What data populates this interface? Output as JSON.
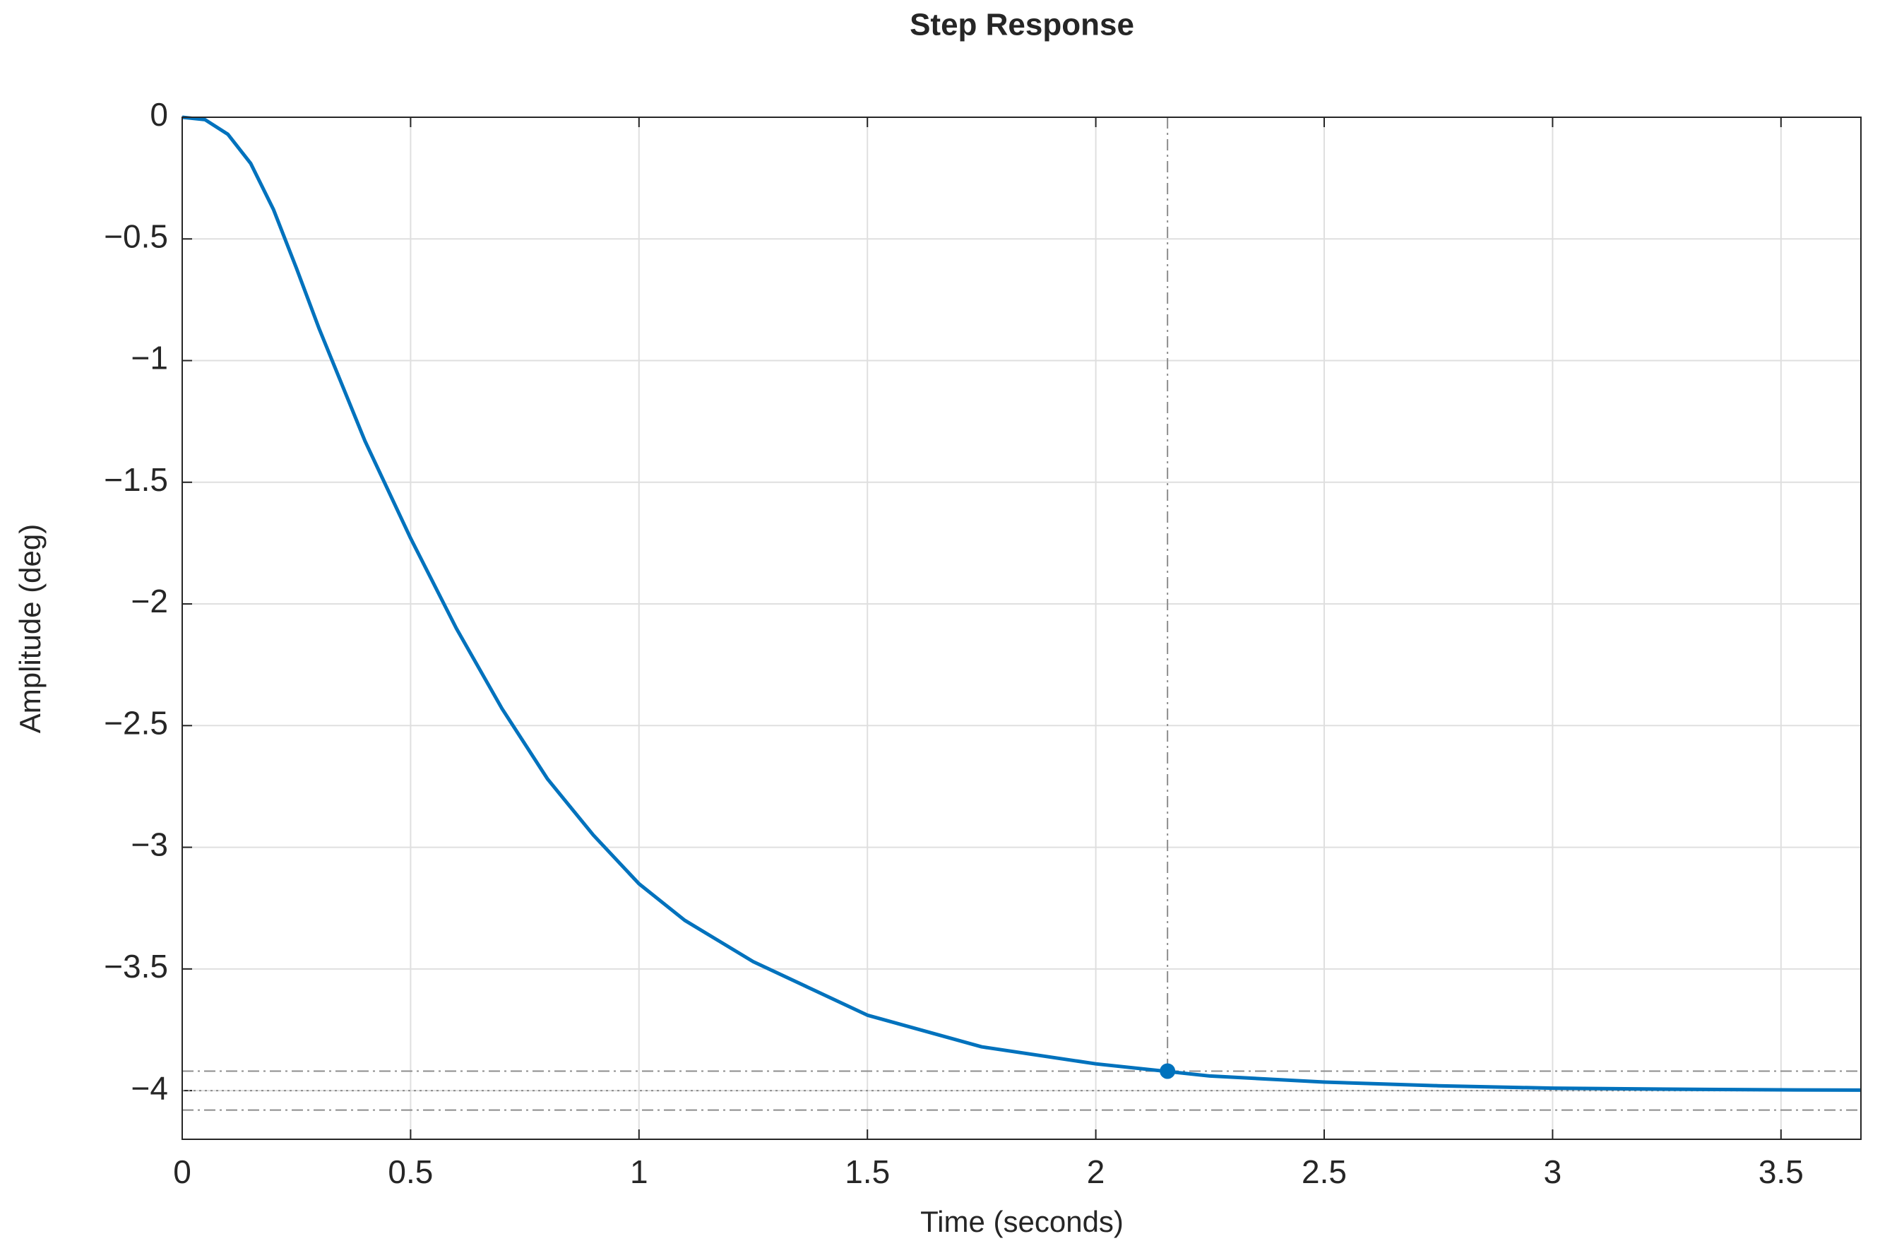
{
  "chart_data": {
    "type": "line",
    "title": "Step Response",
    "x_label": "Time (seconds)",
    "y_label": "Amplitude (deg)",
    "x": [
      0,
      0.05,
      0.1,
      0.15,
      0.2,
      0.25,
      0.3,
      0.35,
      0.4,
      0.45,
      0.5,
      0.6,
      0.7,
      0.8,
      0.9,
      1.0,
      1.1,
      1.25,
      1.5,
      1.75,
      2.0,
      2.25,
      2.5,
      2.75,
      3.0,
      3.25,
      3.5,
      3.675
    ],
    "series": [
      {
        "name": "Step response",
        "color": "#0072bd",
        "values": [
          0,
          -0.01,
          -0.07,
          -0.19,
          -0.38,
          -0.62,
          -0.87,
          -1.1,
          -1.33,
          -1.53,
          -1.73,
          -2.1,
          -2.43,
          -2.72,
          -2.95,
          -3.15,
          -3.3,
          -3.47,
          -3.69,
          -3.82,
          -3.89,
          -3.94,
          -3.965,
          -3.98,
          -3.99,
          -3.994,
          -3.997,
          -3.998
        ]
      }
    ],
    "settling_time": {
      "x": 2.157,
      "y": -3.92
    },
    "steady_state": -4,
    "settling_bounds": [
      -3.92,
      -4.08
    ],
    "xlim": [
      0,
      3.675
    ],
    "ylim": [
      -4.2,
      0
    ],
    "xticks": [
      0,
      0.5,
      1,
      1.5,
      2,
      2.5,
      3,
      3.5
    ],
    "yticks": [
      {
        "value": -4,
        "label": "−4"
      },
      {
        "value": -3.5,
        "label": "−3.5"
      },
      {
        "value": -3,
        "label": "−3"
      },
      {
        "value": -2.5,
        "label": "−2.5"
      },
      {
        "value": -2,
        "label": "−2"
      },
      {
        "value": -1.5,
        "label": "−1.5"
      },
      {
        "value": -1,
        "label": "−1"
      },
      {
        "value": -0.5,
        "label": "−0.5"
      },
      0
    ],
    "grid": true
  }
}
